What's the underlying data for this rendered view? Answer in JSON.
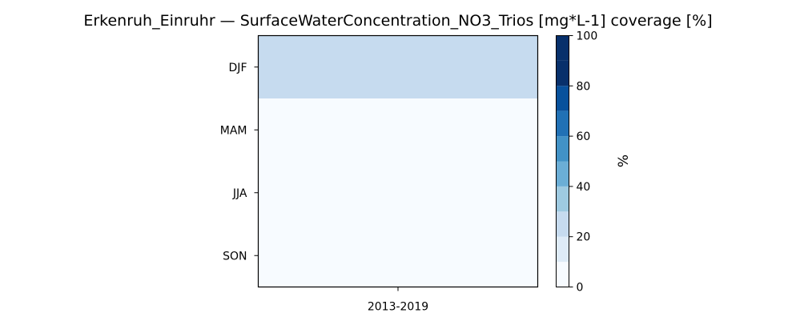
{
  "chart_data": {
    "type": "heatmap",
    "title": "Erkenruh_Einruhr — SurfaceWaterConcentration_NO3_Trios [mg*L-1] coverage [%]",
    "x_categories": [
      "2013-2019"
    ],
    "y_categories": [
      "DJF",
      "MAM",
      "JJA",
      "SON"
    ],
    "values": [
      [
        25
      ],
      [
        0
      ],
      [
        0
      ],
      [
        0
      ]
    ],
    "colorbar": {
      "label": "%",
      "range": [
        0,
        100
      ],
      "boundaries": [
        0,
        10,
        20,
        30,
        40,
        50,
        60,
        70,
        80,
        90,
        100
      ],
      "ticks": [
        0,
        20,
        40,
        60,
        80,
        100
      ],
      "colors": [
        "#f7fbff",
        "#deebf7",
        "#c6dbef",
        "#9ecae1",
        "#6baed6",
        "#4292c6",
        "#2171b5",
        "#08519c",
        "#08306b",
        "#08306b"
      ]
    }
  }
}
